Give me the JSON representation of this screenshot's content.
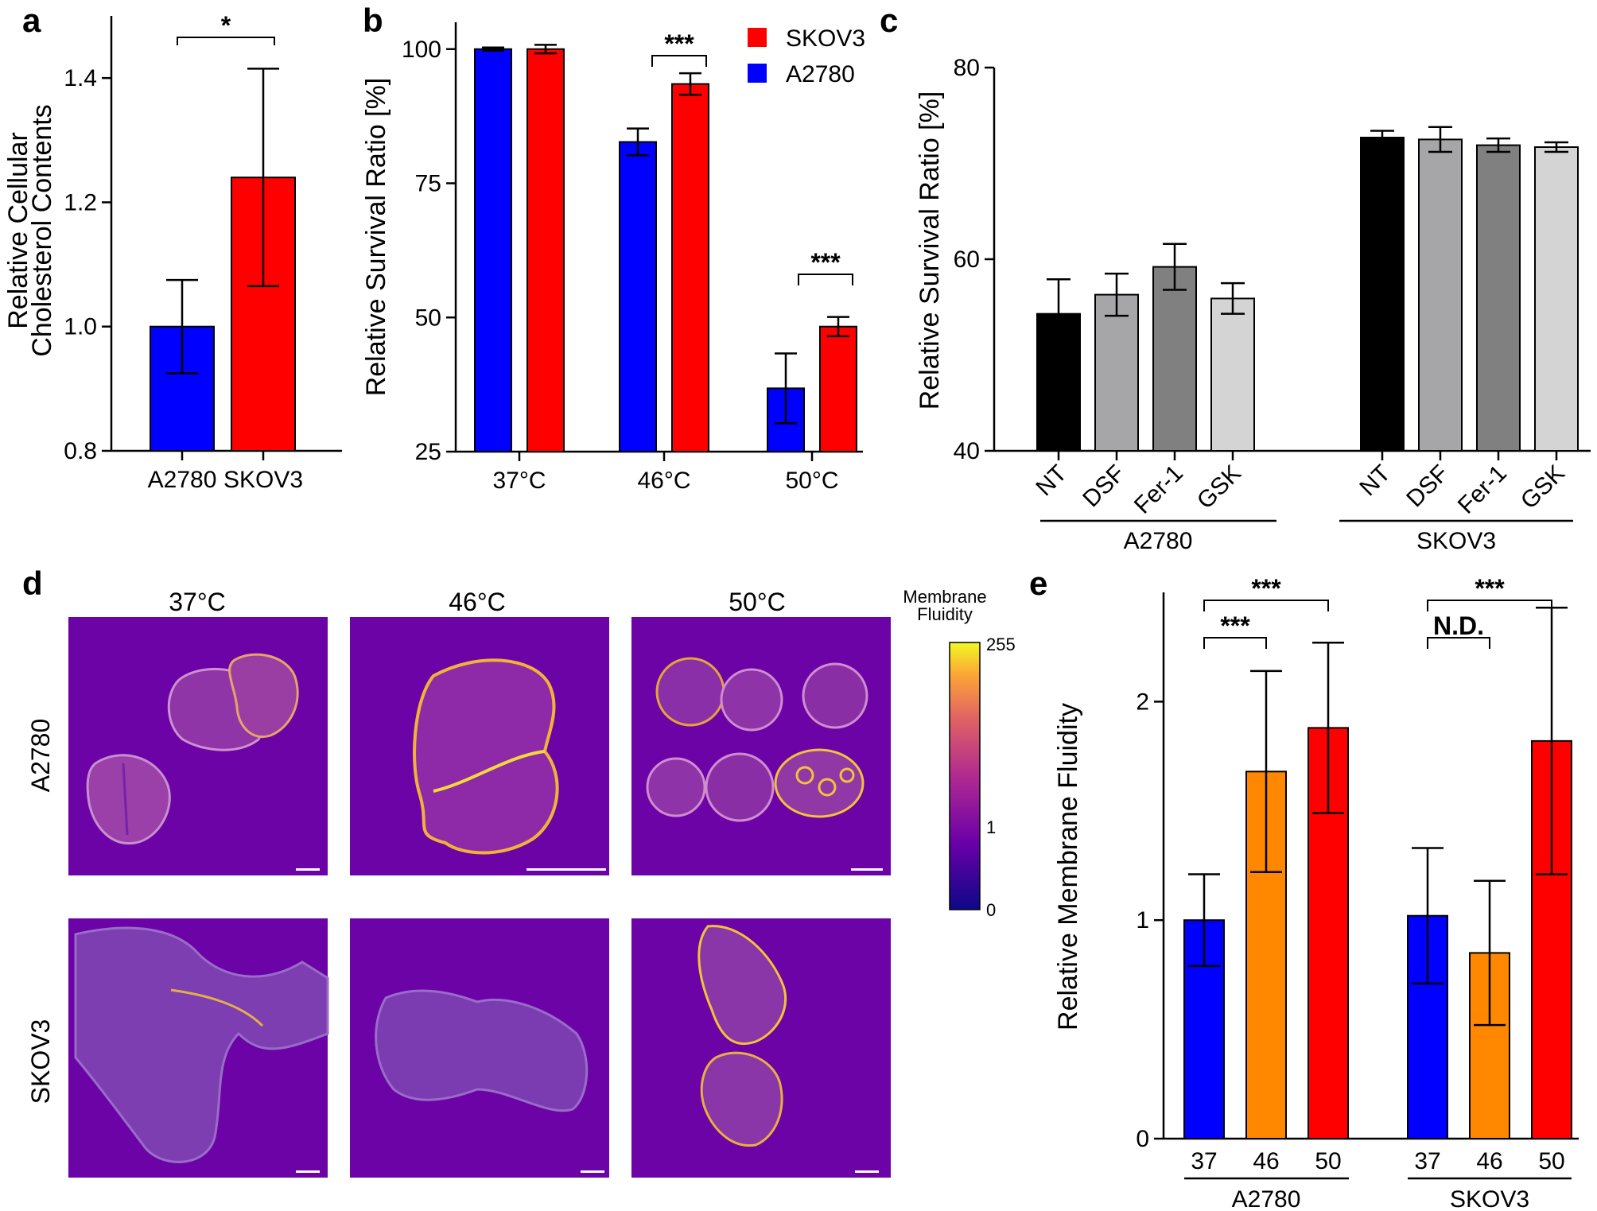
{
  "panels": {
    "a": "a",
    "b": "b",
    "c": "c",
    "d": "d",
    "e": "e"
  },
  "colors": {
    "blue": "#0000ff",
    "red": "#ff0000",
    "orange": "#ff8800",
    "black": "#000000",
    "grey_dark": "#808080",
    "grey_mid": "#a6a6a8",
    "grey_light": "#d4d4d4",
    "purple_bg": "#6b03a6"
  },
  "chart_data": [
    {
      "id": "a",
      "type": "bar",
      "ylabel_line1": "Relative Cellular",
      "ylabel_line2": "Cholesterol Contents",
      "categories": [
        "A2780",
        "SKOV3"
      ],
      "values": [
        1.0,
        1.24
      ],
      "errors": [
        0.075,
        0.175
      ],
      "colors": [
        "#0000ff",
        "#ff0000"
      ],
      "ylim": [
        0.8,
        1.5
      ],
      "yticks": [
        0.8,
        1.0,
        1.2,
        1.4
      ],
      "ytick_labels": [
        "0.8",
        "1.0",
        "1.2",
        "1.4"
      ],
      "significance": "*"
    },
    {
      "id": "b",
      "type": "bar",
      "ylabel": "Relative Survival Ratio [%]",
      "categories": [
        "37°C",
        "46°C",
        "50°C"
      ],
      "series": [
        {
          "name": "A2780",
          "color": "#0000ff",
          "values": [
            100,
            82.7,
            36.8
          ],
          "errors": [
            0.3,
            2.5,
            6.5
          ]
        },
        {
          "name": "SKOV3",
          "color": "#ff0000",
          "values": [
            100,
            93.5,
            48.3
          ],
          "errors": [
            0.8,
            2.0,
            1.8
          ]
        }
      ],
      "legend": [
        "SKOV3",
        "A2780"
      ],
      "ylim": [
        25,
        105
      ],
      "yticks": [
        25,
        50,
        75,
        100
      ],
      "ytick_labels": [
        "25",
        "50",
        "75",
        "100"
      ],
      "significance": [
        "***",
        "***"
      ]
    },
    {
      "id": "c",
      "type": "bar",
      "ylabel": "Relative Survival Ratio [%]",
      "categories": [
        "NT",
        "DSF",
        "Fer-1",
        "GSK",
        "NT",
        "DSF",
        "Fer-1",
        "GSK"
      ],
      "groups": [
        "A2780",
        "SKOV3"
      ],
      "values": [
        54.3,
        56.3,
        59.2,
        55.9,
        72.7,
        72.5,
        71.9,
        71.7
      ],
      "errors": [
        3.6,
        2.2,
        2.4,
        1.6,
        0.7,
        1.3,
        0.7,
        0.5
      ],
      "colors": [
        "#000000",
        "#a6a6a8",
        "#808080",
        "#d4d4d4",
        "#000000",
        "#a6a6a8",
        "#808080",
        "#d4d4d4"
      ],
      "ylim": [
        40,
        80
      ],
      "yticks": [
        40,
        60,
        80
      ],
      "ytick_labels": [
        "40",
        "60",
        "80"
      ]
    },
    {
      "id": "e",
      "type": "bar",
      "ylabel": "Relative Membrane Fluidity",
      "categories": [
        "37",
        "46",
        "50",
        "37",
        "46",
        "50"
      ],
      "groups": [
        "A2780",
        "SKOV3"
      ],
      "values": [
        1.0,
        1.68,
        1.88,
        1.02,
        0.85,
        1.82
      ],
      "errors": [
        0.21,
        0.46,
        0.39,
        0.31,
        0.33,
        0.61
      ],
      "colors": [
        "#0000ff",
        "#ff8800",
        "#ff0000",
        "#0000ff",
        "#ff8800",
        "#ff0000"
      ],
      "ylim": [
        0,
        2.5
      ],
      "yticks": [
        0,
        1,
        2
      ],
      "ytick_labels": [
        "0",
        "1",
        "2"
      ],
      "significance": [
        "***",
        "***",
        "***",
        "N.D."
      ]
    }
  ],
  "micrographs": {
    "columns": [
      "37°C",
      "46°C",
      "50°C"
    ],
    "rows": [
      "A2780",
      "SKOV3"
    ],
    "colorbar_title_line1": "Membrane",
    "colorbar_title_line2": "Fluidity",
    "colorbar_ticks": [
      "255",
      "1",
      "0"
    ]
  }
}
